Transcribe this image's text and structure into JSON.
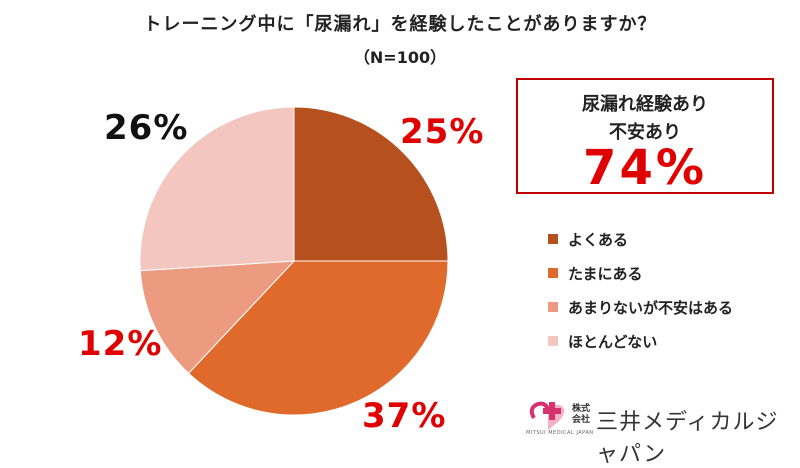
{
  "chart_data": {
    "type": "pie",
    "title": "トレーニング中に「尿漏れ」を経験したことがありますか？",
    "subtitle": "（N=100）",
    "categories": [
      "よくある",
      "たまにある",
      "あまりないが不安はある",
      "ほとんどない"
    ],
    "values": [
      25,
      37,
      12,
      26
    ],
    "labels": [
      "25%",
      "37%",
      "12%",
      "26%"
    ],
    "label_colors": [
      "#e00000",
      "#e00000",
      "#e00000",
      "#111111"
    ],
    "colors": [
      "#b7501f",
      "#df6a2c",
      "#ec9a80",
      "#f3c6bf"
    ],
    "start_angle": "12 o'clock",
    "direction": "clockwise",
    "legend_position": "right"
  },
  "callout": {
    "line1": "尿漏れ経験あり",
    "line2": "不安あり",
    "value": "74%"
  },
  "logo": {
    "kaisha": "株式\n会社",
    "name": "三井メディカルジャパン",
    "small": "MITSUI MEDICAL JAPAN",
    "icon_color": "#d6336c"
  }
}
